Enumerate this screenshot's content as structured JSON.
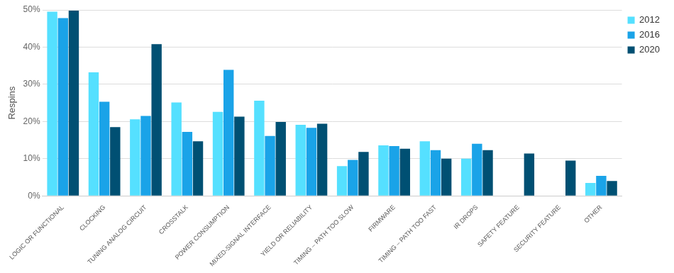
{
  "chart_data": {
    "type": "bar",
    "y_label": "Respins",
    "categories": [
      "LOGIC OR FUNCTIONAL",
      "CLOCKING",
      "TUNING ANALOG CIRCUIT",
      "CROSSTALK",
      "POWER CONSUMPTION",
      "MIXED-SIGNAL INTERFACE",
      "YIELD OR RELIABILITY",
      "TIMING – PATH TOO SLOW",
      "FIRMWARE",
      "TIMING – PATH TOO FAST",
      "IR DROPS",
      "SAFETY FEATURE",
      "SECURITY FEATURE",
      "OTHER"
    ],
    "series": [
      {
        "name": "2012",
        "color": "#55e0ff",
        "values": [
          49.5,
          33.2,
          20.6,
          25.1,
          22.6,
          25.6,
          19.1,
          8.0,
          13.6,
          14.7,
          10.0,
          null,
          null,
          3.5
        ]
      },
      {
        "name": "2016",
        "color": "#1aa3e8",
        "values": [
          47.8,
          25.3,
          21.5,
          17.2,
          33.9,
          16.1,
          18.3,
          9.7,
          13.4,
          12.3,
          14.0,
          null,
          null,
          5.4
        ]
      },
      {
        "name": "2020",
        "color": "#005073",
        "values": [
          49.8,
          18.5,
          40.8,
          14.7,
          21.3,
          19.9,
          19.4,
          11.8,
          12.7,
          10.0,
          12.3,
          11.4,
          9.5,
          4.0
        ]
      }
    ],
    "ylim": [
      0,
      50
    ],
    "yticks": [
      {
        "value": 0,
        "label": "0%"
      },
      {
        "value": 10,
        "label": "10%"
      },
      {
        "value": 20,
        "label": "20%"
      },
      {
        "value": 30,
        "label": "30%"
      },
      {
        "value": 40,
        "label": "40%"
      },
      {
        "value": 50,
        "label": "50%"
      }
    ],
    "grid": true,
    "legend": "top-right"
  }
}
